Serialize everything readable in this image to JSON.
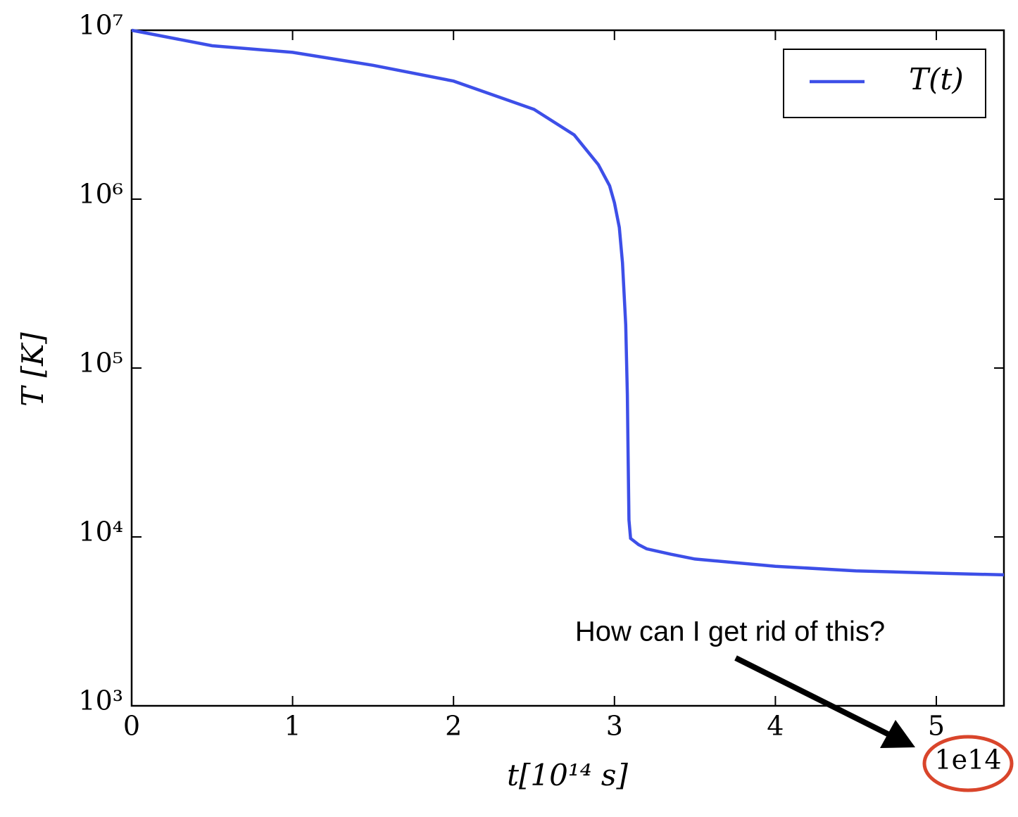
{
  "chart_data": {
    "type": "line",
    "x_label": "t[10¹⁴ s]",
    "y_label": "T [K]",
    "x_offset_text": "1e14",
    "annotation": "How can I get rid of this?",
    "x": [
      0,
      0.5,
      1,
      1.5,
      2,
      2.5,
      2.75,
      2.9,
      2.97,
      3.0,
      3.03,
      3.05,
      3.07,
      3.08,
      3.085,
      3.09,
      3.1,
      3.15,
      3.2,
      3.35,
      3.5,
      4,
      4.5,
      5,
      5.42
    ],
    "series": [
      {
        "name": "T(t)",
        "color": "#3d4fe8",
        "values": [
          10000000,
          8100000,
          7400000,
          6200000,
          5000000,
          3400000,
          2400000,
          1600000,
          1200000,
          950000,
          680000,
          420000,
          180000,
          70000,
          30000,
          12600,
          9800,
          9000,
          8500,
          7900,
          7400,
          6700,
          6300,
          6100,
          5960
        ]
      }
    ],
    "xlim": [
      0,
      5.42
    ],
    "ylim": [
      1000,
      10000000
    ],
    "xticks": [
      0,
      1,
      2,
      3,
      4,
      5
    ],
    "yticks": [
      {
        "value": 1000,
        "label": "10³"
      },
      {
        "value": 10000,
        "label": "10⁴"
      },
      {
        "value": 100000,
        "label": "10⁵"
      },
      {
        "value": 1000000,
        "label": "10⁶"
      },
      {
        "value": 10000000,
        "label": "10⁷"
      }
    ],
    "y_scale": "log",
    "legend": "upper right"
  }
}
